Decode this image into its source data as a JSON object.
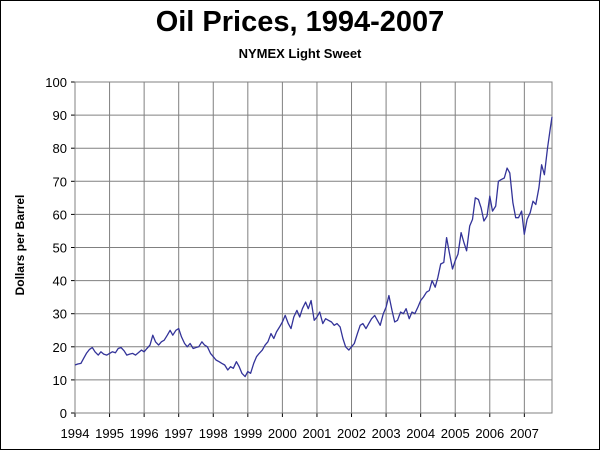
{
  "chart_data": {
    "type": "line",
    "title": "Oil Prices, 1994-2007",
    "subtitle": "NYMEX Light Sweet",
    "xlabel": "",
    "ylabel": "Dollars per Barrel",
    "xlim": [
      1994,
      2007.8
    ],
    "ylim": [
      0,
      100
    ],
    "x_ticks": [
      "1994",
      "1995",
      "1996",
      "1997",
      "1998",
      "1999",
      "2000",
      "2001",
      "2002",
      "2003",
      "2004",
      "2005",
      "2006",
      "2007"
    ],
    "y_ticks": [
      0,
      10,
      20,
      30,
      40,
      50,
      60,
      70,
      80,
      90,
      100
    ],
    "grid": true,
    "legend": "none",
    "series": [
      {
        "color": "#333399",
        "points": [
          [
            1994.0,
            14.5
          ],
          [
            1994.08,
            14.8
          ],
          [
            1994.17,
            15.0
          ],
          [
            1994.25,
            16.5
          ],
          [
            1994.33,
            18.0
          ],
          [
            1994.42,
            19.2
          ],
          [
            1994.5,
            19.8
          ],
          [
            1994.58,
            18.5
          ],
          [
            1994.67,
            17.5
          ],
          [
            1994.75,
            18.5
          ],
          [
            1994.83,
            17.8
          ],
          [
            1994.92,
            17.5
          ],
          [
            1995.0,
            18.0
          ],
          [
            1995.08,
            18.5
          ],
          [
            1995.17,
            18.2
          ],
          [
            1995.25,
            19.5
          ],
          [
            1995.33,
            19.8
          ],
          [
            1995.42,
            18.8
          ],
          [
            1995.5,
            17.5
          ],
          [
            1995.58,
            17.8
          ],
          [
            1995.67,
            18.0
          ],
          [
            1995.75,
            17.5
          ],
          [
            1995.83,
            18.2
          ],
          [
            1995.92,
            19.0
          ],
          [
            1996.0,
            18.5
          ],
          [
            1996.08,
            19.5
          ],
          [
            1996.17,
            20.5
          ],
          [
            1996.25,
            23.5
          ],
          [
            1996.33,
            21.5
          ],
          [
            1996.42,
            20.5
          ],
          [
            1996.5,
            21.5
          ],
          [
            1996.58,
            22.0
          ],
          [
            1996.67,
            23.5
          ],
          [
            1996.75,
            25.0
          ],
          [
            1996.83,
            23.5
          ],
          [
            1996.92,
            25.0
          ],
          [
            1997.0,
            25.5
          ],
          [
            1997.08,
            23.0
          ],
          [
            1997.17,
            21.0
          ],
          [
            1997.25,
            20.0
          ],
          [
            1997.33,
            21.0
          ],
          [
            1997.42,
            19.5
          ],
          [
            1997.5,
            19.8
          ],
          [
            1997.58,
            20.0
          ],
          [
            1997.67,
            21.5
          ],
          [
            1997.75,
            20.5
          ],
          [
            1997.83,
            20.0
          ],
          [
            1997.92,
            18.0
          ],
          [
            1998.0,
            17.0
          ],
          [
            1998.08,
            16.0
          ],
          [
            1998.17,
            15.5
          ],
          [
            1998.25,
            15.0
          ],
          [
            1998.33,
            14.5
          ],
          [
            1998.42,
            13.0
          ],
          [
            1998.5,
            14.0
          ],
          [
            1998.58,
            13.5
          ],
          [
            1998.67,
            15.5
          ],
          [
            1998.75,
            14.0
          ],
          [
            1998.83,
            12.0
          ],
          [
            1998.92,
            11.0
          ],
          [
            1999.0,
            12.5
          ],
          [
            1999.08,
            12.0
          ],
          [
            1999.17,
            15.0
          ],
          [
            1999.25,
            17.0
          ],
          [
            1999.33,
            18.0
          ],
          [
            1999.42,
            19.0
          ],
          [
            1999.5,
            20.5
          ],
          [
            1999.58,
            21.5
          ],
          [
            1999.67,
            24.0
          ],
          [
            1999.75,
            22.5
          ],
          [
            1999.83,
            24.5
          ],
          [
            1999.92,
            26.0
          ],
          [
            2000.0,
            27.5
          ],
          [
            2000.08,
            29.5
          ],
          [
            2000.17,
            27.0
          ],
          [
            2000.25,
            25.5
          ],
          [
            2000.33,
            29.0
          ],
          [
            2000.42,
            31.0
          ],
          [
            2000.5,
            29.0
          ],
          [
            2000.58,
            31.5
          ],
          [
            2000.67,
            33.5
          ],
          [
            2000.75,
            31.5
          ],
          [
            2000.83,
            34.0
          ],
          [
            2000.92,
            28.0
          ],
          [
            2001.0,
            29.0
          ],
          [
            2001.08,
            30.5
          ],
          [
            2001.17,
            27.0
          ],
          [
            2001.25,
            28.5
          ],
          [
            2001.33,
            28.0
          ],
          [
            2001.42,
            27.5
          ],
          [
            2001.5,
            26.5
          ],
          [
            2001.58,
            27.0
          ],
          [
            2001.67,
            26.0
          ],
          [
            2001.75,
            22.5
          ],
          [
            2001.83,
            20.0
          ],
          [
            2001.92,
            19.0
          ],
          [
            2002.0,
            20.0
          ],
          [
            2002.08,
            21.0
          ],
          [
            2002.17,
            24.0
          ],
          [
            2002.25,
            26.5
          ],
          [
            2002.33,
            27.0
          ],
          [
            2002.42,
            25.5
          ],
          [
            2002.5,
            27.0
          ],
          [
            2002.58,
            28.5
          ],
          [
            2002.67,
            29.5
          ],
          [
            2002.75,
            28.0
          ],
          [
            2002.83,
            26.5
          ],
          [
            2002.92,
            30.0
          ],
          [
            2003.0,
            32.0
          ],
          [
            2003.08,
            35.5
          ],
          [
            2003.17,
            31.0
          ],
          [
            2003.25,
            27.5
          ],
          [
            2003.33,
            28.0
          ],
          [
            2003.42,
            30.5
          ],
          [
            2003.5,
            30.0
          ],
          [
            2003.58,
            31.5
          ],
          [
            2003.67,
            28.5
          ],
          [
            2003.75,
            30.5
          ],
          [
            2003.83,
            30.0
          ],
          [
            2003.92,
            32.0
          ],
          [
            2004.0,
            34.0
          ],
          [
            2004.08,
            35.0
          ],
          [
            2004.17,
            36.5
          ],
          [
            2004.25,
            37.0
          ],
          [
            2004.33,
            40.0
          ],
          [
            2004.42,
            38.0
          ],
          [
            2004.5,
            41.0
          ],
          [
            2004.58,
            45.0
          ],
          [
            2004.67,
            45.5
          ],
          [
            2004.75,
            53.0
          ],
          [
            2004.83,
            48.5
          ],
          [
            2004.92,
            43.5
          ],
          [
            2005.0,
            46.0
          ],
          [
            2005.08,
            48.0
          ],
          [
            2005.17,
            54.5
          ],
          [
            2005.25,
            51.5
          ],
          [
            2005.33,
            49.0
          ],
          [
            2005.42,
            56.5
          ],
          [
            2005.5,
            58.5
          ],
          [
            2005.58,
            65.0
          ],
          [
            2005.67,
            64.5
          ],
          [
            2005.75,
            62.0
          ],
          [
            2005.83,
            58.0
          ],
          [
            2005.92,
            59.5
          ],
          [
            2006.0,
            65.5
          ],
          [
            2006.08,
            61.0
          ],
          [
            2006.17,
            62.5
          ],
          [
            2006.25,
            70.0
          ],
          [
            2006.33,
            70.5
          ],
          [
            2006.42,
            71.0
          ],
          [
            2006.5,
            74.0
          ],
          [
            2006.58,
            72.5
          ],
          [
            2006.67,
            63.5
          ],
          [
            2006.75,
            59.0
          ],
          [
            2006.83,
            59.0
          ],
          [
            2006.92,
            61.0
          ],
          [
            2007.0,
            54.0
          ],
          [
            2007.08,
            58.5
          ],
          [
            2007.17,
            60.5
          ],
          [
            2007.25,
            64.0
          ],
          [
            2007.33,
            63.0
          ],
          [
            2007.42,
            68.0
          ],
          [
            2007.5,
            75.0
          ],
          [
            2007.58,
            72.0
          ],
          [
            2007.67,
            80.0
          ],
          [
            2007.75,
            86.0
          ],
          [
            2007.8,
            89.5
          ]
        ]
      }
    ]
  }
}
